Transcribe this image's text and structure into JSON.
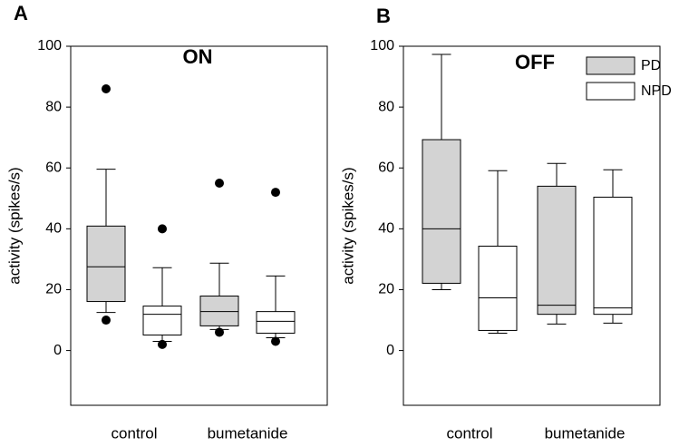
{
  "chart_data": [
    {
      "type": "box",
      "panel": "A",
      "title": "ON",
      "ylabel": "activity (spikes/s)",
      "categories": [
        "control",
        "bumetanide"
      ],
      "ylim": [
        -18,
        100
      ],
      "yticks": [
        0,
        20,
        40,
        60,
        80,
        100
      ],
      "series": [
        {
          "name": "PD",
          "color": "#d3d3d3",
          "values": [
            {
              "whislo": 12.5,
              "q1": 16.1,
              "med": 27.5,
              "q3": 40.9,
              "whishi": 59.6,
              "fliers": [
                86,
                10
              ]
            },
            {
              "whislo": 6.9,
              "q1": 8.1,
              "med": 12.8,
              "q3": 17.9,
              "whishi": 28.7,
              "fliers": [
                55,
                6
              ]
            }
          ]
        },
        {
          "name": "NPD",
          "color": "#ffffff",
          "values": [
            {
              "whislo": 3,
              "q1": 5.1,
              "med": 11.9,
              "q3": 14.6,
              "whishi": 27.2,
              "fliers": [
                40,
                2
              ]
            },
            {
              "whislo": 4.2,
              "q1": 5.7,
              "med": 9.6,
              "q3": 12.8,
              "whishi": 24.5,
              "fliers": [
                52,
                3
              ]
            }
          ]
        }
      ]
    },
    {
      "type": "box",
      "panel": "B",
      "title": "OFF",
      "ylabel": "activity (spikes/s)",
      "categories": [
        "control",
        "bumetanide"
      ],
      "ylim": [
        -18,
        100
      ],
      "yticks": [
        0,
        20,
        40,
        60,
        80,
        100
      ],
      "legend": "upper right",
      "series": [
        {
          "name": "PD",
          "color": "#d3d3d3",
          "values": [
            {
              "whislo": 20,
              "q1": 22.1,
              "med": 40,
              "q3": 69.3,
              "whishi": 97.3,
              "fliers": []
            },
            {
              "whislo": 8.7,
              "q1": 11.9,
              "med": 14.9,
              "q3": 54,
              "whishi": 61.5,
              "fliers": []
            }
          ]
        },
        {
          "name": "NPD",
          "color": "#ffffff",
          "values": [
            {
              "whislo": 5.7,
              "q1": 6.6,
              "med": 17.3,
              "q3": 34.3,
              "whishi": 59.1,
              "fliers": []
            },
            {
              "whislo": 9,
              "q1": 11.9,
              "med": 14,
              "q3": 50.4,
              "whishi": 59.4,
              "fliers": []
            }
          ]
        }
      ]
    }
  ]
}
